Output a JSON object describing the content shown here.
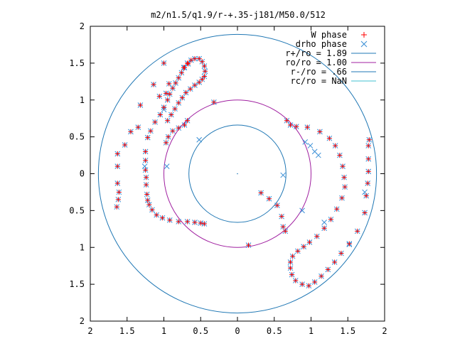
{
  "chart_data": {
    "type": "scatter",
    "title": "m2/n1.5/q1.9/r-+.35-j181/M50.0/512",
    "xlabel": "",
    "ylabel": "",
    "xlim": [
      -2,
      2
    ],
    "ylim": [
      -2,
      2
    ],
    "x_tick_values": [
      -2,
      -1.5,
      -1,
      -0.5,
      0,
      0.5,
      1,
      1.5,
      2
    ],
    "x_tick_labels": [
      "2",
      "1.5",
      "1",
      "0.5",
      "0",
      "0.5",
      "1",
      "1.5",
      "2"
    ],
    "y_tick_values": [
      2,
      1.5,
      1,
      0.5,
      0,
      -0.5,
      -1,
      -1.5,
      -2
    ],
    "y_tick_labels": [
      "2",
      "1.5",
      "1",
      "0.5",
      "0",
      "0.5",
      "1",
      "1.5",
      "2"
    ],
    "grid": false,
    "legend_position": "top-right",
    "series": [
      {
        "name": "W phase",
        "kind": "points",
        "marker": "plus",
        "color": "#ff0000",
        "points": [
          [
            -0.32,
            0.97
          ],
          [
            0.67,
            0.72
          ],
          [
            0.72,
            0.66
          ],
          [
            0.8,
            0.64
          ],
          [
            0.95,
            0.63
          ],
          [
            1.12,
            0.57
          ],
          [
            1.25,
            0.48
          ],
          [
            1.33,
            0.38
          ],
          [
            1.39,
            0.25
          ],
          [
            1.43,
            0.1
          ],
          [
            1.45,
            -0.05
          ],
          [
            1.46,
            -0.18
          ],
          [
            1.42,
            -0.33
          ],
          [
            1.35,
            -0.48
          ],
          [
            1.27,
            -0.62
          ],
          [
            1.18,
            -0.74
          ],
          [
            1.08,
            -0.85
          ],
          [
            0.98,
            -0.93
          ],
          [
            0.9,
            -0.99
          ],
          [
            0.82,
            -1.05
          ],
          [
            0.75,
            -1.12
          ],
          [
            0.72,
            -1.2
          ],
          [
            0.72,
            -1.28
          ],
          [
            0.74,
            -1.37
          ],
          [
            0.79,
            -1.45
          ],
          [
            0.88,
            -1.5
          ],
          [
            0.97,
            -1.52
          ],
          [
            1.05,
            -1.47
          ],
          [
            1.14,
            -1.39
          ],
          [
            1.23,
            -1.3
          ],
          [
            1.32,
            -1.2
          ],
          [
            1.41,
            -1.08
          ],
          [
            1.52,
            -0.95
          ],
          [
            1.63,
            -0.78
          ],
          [
            1.73,
            -0.53
          ],
          [
            1.75,
            -0.3
          ],
          [
            1.77,
            -0.13
          ],
          [
            1.78,
            0.03
          ],
          [
            1.78,
            0.2
          ],
          [
            1.78,
            0.38
          ],
          [
            1.79,
            0.46
          ],
          [
            0.65,
            -0.78
          ],
          [
            0.62,
            -0.72
          ],
          [
            0.6,
            -0.58
          ],
          [
            0.54,
            -0.43
          ],
          [
            0.43,
            -0.34
          ],
          [
            0.32,
            -0.26
          ],
          [
            0.15,
            -0.97
          ],
          [
            -0.68,
            0.72
          ],
          [
            -0.72,
            0.66
          ],
          [
            -0.8,
            0.62
          ],
          [
            -0.88,
            0.58
          ],
          [
            -0.94,
            0.5
          ],
          [
            -0.97,
            0.42
          ],
          [
            -0.45,
            -0.68
          ],
          [
            -0.5,
            -0.67
          ],
          [
            -0.58,
            -0.66
          ],
          [
            -0.68,
            -0.65
          ],
          [
            -0.8,
            -0.65
          ],
          [
            -0.92,
            -0.63
          ],
          [
            -1.02,
            -0.6
          ],
          [
            -1.1,
            -0.56
          ],
          [
            -1.16,
            -0.49
          ],
          [
            -1.2,
            -0.42
          ],
          [
            -1.22,
            -0.36
          ],
          [
            -1.23,
            -0.28
          ],
          [
            -1.24,
            -0.15
          ],
          [
            -1.24,
            -0.05
          ],
          [
            -1.25,
            0.05
          ],
          [
            -1.25,
            0.18
          ],
          [
            -1.25,
            0.3
          ],
          [
            -1.22,
            0.49
          ],
          [
            -1.18,
            0.58
          ],
          [
            -1.12,
            0.7
          ],
          [
            -1.05,
            0.8
          ],
          [
            -1.0,
            0.9
          ],
          [
            -0.95,
            1.0
          ],
          [
            -0.92,
            1.08
          ],
          [
            -0.88,
            1.16
          ],
          [
            -0.84,
            1.23
          ],
          [
            -0.8,
            1.3
          ],
          [
            -0.76,
            1.37
          ],
          [
            -0.72,
            1.44
          ],
          [
            -0.68,
            1.5
          ],
          [
            -0.63,
            1.54
          ],
          [
            -0.58,
            1.56
          ],
          [
            -0.52,
            1.56
          ],
          [
            -0.48,
            1.52
          ],
          [
            -0.45,
            1.46
          ],
          [
            -0.44,
            1.39
          ],
          [
            -0.45,
            1.32
          ],
          [
            -0.48,
            1.28
          ],
          [
            -0.52,
            1.24
          ],
          [
            -0.58,
            1.2
          ],
          [
            -0.64,
            1.15
          ],
          [
            -0.7,
            1.1
          ],
          [
            -0.75,
            1.03
          ],
          [
            -0.8,
            0.96
          ],
          [
            -0.85,
            0.88
          ],
          [
            -0.9,
            0.8
          ],
          [
            -0.95,
            0.72
          ],
          [
            -0.93,
            1.22
          ],
          [
            -0.97,
            1.09
          ],
          [
            -1.06,
            1.05
          ],
          [
            -1.32,
            0.93
          ],
          [
            -1.35,
            0.63
          ],
          [
            -1.45,
            0.57
          ],
          [
            -1.53,
            0.39
          ],
          [
            -1.63,
            0.27
          ],
          [
            -1.63,
            0.1
          ],
          [
            -1.63,
            -0.13
          ],
          [
            -1.61,
            -0.25
          ],
          [
            -1.62,
            -0.35
          ],
          [
            -1.64,
            -0.45
          ],
          [
            -1.14,
            1.21
          ],
          [
            -1.0,
            1.5
          ],
          [
            -0.73,
            1.44
          ],
          [
            -0.67,
            1.49
          ]
        ]
      },
      {
        "name": "drho phase",
        "kind": "points",
        "marker": "cross",
        "color": "#3a8fd6",
        "points": [
          [
            -0.32,
            0.97
          ],
          [
            0.67,
            0.72
          ],
          [
            0.72,
            0.66
          ],
          [
            0.8,
            0.64
          ],
          [
            0.95,
            0.63
          ],
          [
            1.12,
            0.57
          ],
          [
            1.25,
            0.48
          ],
          [
            1.33,
            0.38
          ],
          [
            1.39,
            0.25
          ],
          [
            1.43,
            0.1
          ],
          [
            1.45,
            -0.05
          ],
          [
            1.46,
            -0.18
          ],
          [
            1.42,
            -0.33
          ],
          [
            1.35,
            -0.48
          ],
          [
            1.27,
            -0.62
          ],
          [
            1.18,
            -0.74
          ],
          [
            1.08,
            -0.85
          ],
          [
            0.98,
            -0.93
          ],
          [
            0.9,
            -0.99
          ],
          [
            0.82,
            -1.05
          ],
          [
            0.75,
            -1.12
          ],
          [
            0.72,
            -1.2
          ],
          [
            0.72,
            -1.28
          ],
          [
            0.74,
            -1.37
          ],
          [
            0.79,
            -1.45
          ],
          [
            0.88,
            -1.5
          ],
          [
            0.97,
            -1.52
          ],
          [
            1.05,
            -1.47
          ],
          [
            1.14,
            -1.39
          ],
          [
            1.23,
            -1.3
          ],
          [
            1.32,
            -1.2
          ],
          [
            1.41,
            -1.08
          ],
          [
            1.52,
            -0.95
          ],
          [
            1.63,
            -0.78
          ],
          [
            1.73,
            -0.53
          ],
          [
            1.75,
            -0.3
          ],
          [
            1.77,
            -0.13
          ],
          [
            1.78,
            0.03
          ],
          [
            1.78,
            0.2
          ],
          [
            1.78,
            0.38
          ],
          [
            1.79,
            0.46
          ],
          [
            0.65,
            -0.78
          ],
          [
            0.62,
            -0.72
          ],
          [
            0.6,
            -0.58
          ],
          [
            0.54,
            -0.43
          ],
          [
            0.43,
            -0.34
          ],
          [
            0.32,
            -0.26
          ],
          [
            0.15,
            -0.97
          ],
          [
            0.92,
            0.43
          ],
          [
            0.99,
            0.38
          ],
          [
            1.05,
            0.3
          ],
          [
            1.1,
            0.25
          ],
          [
            0.62,
            -0.02
          ],
          [
            0.88,
            -0.5
          ],
          [
            1.18,
            -0.66
          ],
          [
            1.52,
            -0.96
          ],
          [
            1.73,
            -0.25
          ],
          [
            -0.68,
            0.72
          ],
          [
            -0.72,
            0.66
          ],
          [
            -0.8,
            0.62
          ],
          [
            -0.88,
            0.58
          ],
          [
            -0.94,
            0.5
          ],
          [
            -0.97,
            0.42
          ],
          [
            -0.45,
            -0.68
          ],
          [
            -0.5,
            -0.67
          ],
          [
            -0.58,
            -0.66
          ],
          [
            -0.68,
            -0.65
          ],
          [
            -0.8,
            -0.65
          ],
          [
            -0.92,
            -0.63
          ],
          [
            -1.02,
            -0.6
          ],
          [
            -1.1,
            -0.56
          ],
          [
            -1.16,
            -0.49
          ],
          [
            -1.2,
            -0.42
          ],
          [
            -1.22,
            -0.36
          ],
          [
            -1.23,
            -0.28
          ],
          [
            -1.24,
            -0.15
          ],
          [
            -1.24,
            -0.05
          ],
          [
            -1.25,
            0.05
          ],
          [
            -1.25,
            0.18
          ],
          [
            -1.25,
            0.3
          ],
          [
            -1.22,
            0.49
          ],
          [
            -1.18,
            0.58
          ],
          [
            -1.12,
            0.7
          ],
          [
            -1.05,
            0.8
          ],
          [
            -1.0,
            0.9
          ],
          [
            -0.95,
            1.0
          ],
          [
            -0.92,
            1.08
          ],
          [
            -0.88,
            1.16
          ],
          [
            -0.84,
            1.23
          ],
          [
            -0.8,
            1.3
          ],
          [
            -0.76,
            1.37
          ],
          [
            -0.72,
            1.44
          ],
          [
            -0.68,
            1.5
          ],
          [
            -0.63,
            1.54
          ],
          [
            -0.58,
            1.56
          ],
          [
            -0.52,
            1.56
          ],
          [
            -0.48,
            1.52
          ],
          [
            -0.45,
            1.46
          ],
          [
            -0.44,
            1.39
          ],
          [
            -0.45,
            1.32
          ],
          [
            -0.48,
            1.28
          ],
          [
            -0.52,
            1.24
          ],
          [
            -0.58,
            1.2
          ],
          [
            -0.64,
            1.15
          ],
          [
            -0.7,
            1.1
          ],
          [
            -0.75,
            1.03
          ],
          [
            -0.8,
            0.96
          ],
          [
            -0.85,
            0.88
          ],
          [
            -0.9,
            0.8
          ],
          [
            -0.95,
            0.72
          ],
          [
            -0.93,
            1.22
          ],
          [
            -0.97,
            1.09
          ],
          [
            -1.06,
            1.05
          ],
          [
            -1.32,
            0.93
          ],
          [
            -1.35,
            0.63
          ],
          [
            -1.45,
            0.57
          ],
          [
            -1.53,
            0.39
          ],
          [
            -1.63,
            0.27
          ],
          [
            -1.63,
            0.1
          ],
          [
            -1.63,
            -0.13
          ],
          [
            -1.61,
            -0.25
          ],
          [
            -1.62,
            -0.35
          ],
          [
            -1.64,
            -0.45
          ],
          [
            -1.14,
            1.21
          ],
          [
            -1.0,
            1.5
          ],
          [
            -0.73,
            1.44
          ],
          [
            -0.67,
            1.49
          ],
          [
            -1.0,
            0.87
          ],
          [
            -0.52,
            0.46
          ],
          [
            -0.96,
            0.1
          ],
          [
            -1.26,
            0.1
          ]
        ]
      },
      {
        "name": "r+/ro = 1.89",
        "kind": "circle",
        "radius": 1.89,
        "color": "#1f77b4"
      },
      {
        "name": "ro/ro = 1.00",
        "kind": "circle",
        "radius": 1.0,
        "color": "#a020a0"
      },
      {
        "name": "r-/ro = .66",
        "kind": "circle",
        "radius": 0.66,
        "color": "#1f77b4"
      },
      {
        "name": "rc/ro = NaN",
        "kind": "circle",
        "radius": null,
        "color": "#40c0d0"
      }
    ],
    "center_point": [
      0,
      0
    ]
  }
}
